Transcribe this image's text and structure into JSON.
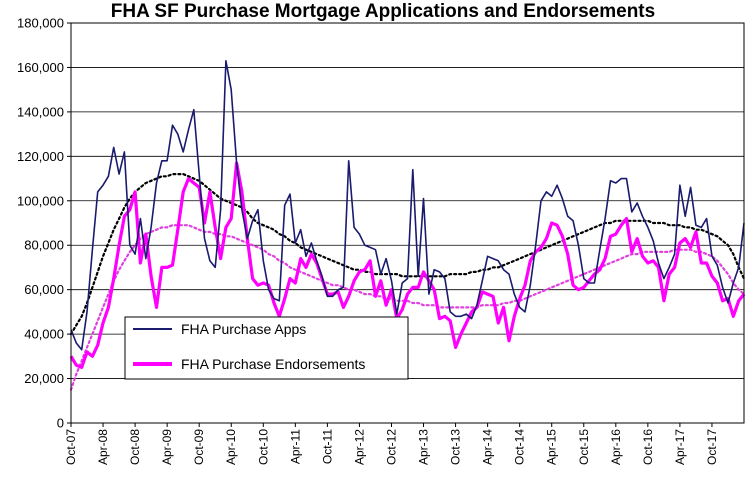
{
  "chart_data": {
    "type": "line",
    "title": "FHA SF Purchase Mortgage Applications and Endorsements",
    "xlabel": "",
    "ylabel": "",
    "ylim": [
      0,
      180000
    ],
    "yticks": [
      0,
      20000,
      40000,
      60000,
      80000,
      100000,
      120000,
      140000,
      160000,
      180000
    ],
    "ytick_labels": [
      "0",
      "20,000",
      "40,000",
      "60,000",
      "80,000",
      "100,000",
      "120,000",
      "140,000",
      "160,000",
      "180,000"
    ],
    "xtick_labels": [
      "Oct-07",
      "Apr-08",
      "Oct-08",
      "Apr-09",
      "Oct-09",
      "Apr-10",
      "Oct-10",
      "Apr-11",
      "Oct-11",
      "Apr-12",
      "Oct-12",
      "Apr-13",
      "Oct-13",
      "Apr-14",
      "Oct-14",
      "Apr-15",
      "Oct-15",
      "Apr-16",
      "Oct-16",
      "Apr-17",
      "Oct-17"
    ],
    "grid": true,
    "legend_position": "bottom-left",
    "series": [
      {
        "name": "FHA Purchase Apps",
        "color": "#1a1a6e",
        "start": "Oct-07",
        "frequency": "monthly",
        "values": [
          42000,
          36000,
          33000,
          50000,
          78000,
          104000,
          107000,
          111000,
          124000,
          112000,
          122000,
          80000,
          76000,
          92000,
          74000,
          88000,
          108000,
          118000,
          118000,
          134000,
          130000,
          122000,
          132000,
          141000,
          112000,
          83000,
          73000,
          70000,
          96000,
          163000,
          150000,
          117000,
          96000,
          83000,
          91000,
          96000,
          73000,
          60000,
          56000,
          55000,
          98000,
          103000,
          81000,
          87000,
          75000,
          81000,
          73000,
          66000,
          57000,
          57000,
          60000,
          61000,
          118000,
          88000,
          85000,
          80000,
          79000,
          78000,
          67000,
          74000,
          64000,
          49000,
          63000,
          65000,
          114000,
          66000,
          101000,
          58000,
          69000,
          68000,
          65000,
          50000,
          48000,
          48000,
          49000,
          47000,
          53000,
          64000,
          75000,
          74000,
          73000,
          69000,
          67000,
          58000,
          52000,
          50000,
          62000,
          80000,
          100000,
          104000,
          102000,
          107000,
          101000,
          93000,
          91000,
          80000,
          65000,
          63000,
          63000,
          78000,
          92000,
          109000,
          108000,
          110000,
          110000,
          95000,
          99000,
          93000,
          88000,
          82000,
          72000,
          65000,
          70000,
          76000,
          107000,
          93000,
          106000,
          89000,
          88000,
          92000,
          75000,
          71000,
          61000,
          54000,
          63000,
          70000,
          90000
        ]
      },
      {
        "name": "FHA Purchase Endorsements",
        "color": "#ff00ff",
        "start": "Oct-07",
        "frequency": "monthly",
        "values": [
          30000,
          26000,
          25000,
          32000,
          30000,
          35000,
          45000,
          52000,
          65000,
          80000,
          93000,
          96000,
          104000,
          72000,
          85000,
          66000,
          52000,
          70000,
          70000,
          71000,
          87000,
          104000,
          110000,
          108000,
          106000,
          90000,
          104000,
          88000,
          74000,
          88000,
          92000,
          117000,
          104000,
          83000,
          65000,
          62000,
          63000,
          62000,
          54000,
          48000,
          56000,
          65000,
          63000,
          74000,
          70000,
          76000,
          72000,
          65000,
          58000,
          58000,
          59000,
          52000,
          57000,
          64000,
          68000,
          69000,
          73000,
          57000,
          64000,
          53000,
          60000,
          47000,
          51000,
          58000,
          61000,
          61000,
          68000,
          64000,
          60000,
          47000,
          48000,
          46000,
          34000,
          40000,
          45000,
          50000,
          52000,
          59000,
          58000,
          57000,
          45000,
          52000,
          37000,
          48000,
          56000,
          62000,
          73000,
          77000,
          79000,
          83000,
          90000,
          89000,
          84000,
          76000,
          62000,
          60000,
          61000,
          64000,
          67000,
          69000,
          74000,
          84000,
          85000,
          89000,
          92000,
          77000,
          83000,
          75000,
          72000,
          73000,
          70000,
          55000,
          67000,
          70000,
          81000,
          83000,
          79000,
          86000,
          72000,
          72000,
          66000,
          63000,
          55000,
          56000,
          48000,
          55000,
          58000
        ]
      },
      {
        "name": "FHA Purchase Apps trend",
        "color": "#000000",
        "style": "dotted",
        "values": [
          40000,
          44000,
          48000,
          54000,
          61000,
          68000,
          75000,
          81000,
          87000,
          92000,
          97000,
          101000,
          104000,
          106000,
          108000,
          109000,
          110000,
          111000,
          111000,
          112000,
          112000,
          112000,
          111000,
          110000,
          109000,
          107000,
          105000,
          103000,
          101000,
          100000,
          99000,
          98000,
          97000,
          95000,
          92000,
          90000,
          89000,
          88000,
          87000,
          85000,
          84000,
          82000,
          81000,
          79000,
          78000,
          77000,
          76000,
          75000,
          74000,
          73000,
          72000,
          71000,
          70000,
          69000,
          69000,
          68000,
          68000,
          67000,
          67000,
          67000,
          67000,
          67000,
          66000,
          66000,
          66000,
          66000,
          66000,
          66000,
          66000,
          66000,
          66000,
          67000,
          67000,
          67000,
          67000,
          68000,
          68000,
          69000,
          69000,
          70000,
          70000,
          71000,
          72000,
          73000,
          74000,
          75000,
          76000,
          77000,
          78000,
          79000,
          80000,
          81000,
          82000,
          83000,
          84000,
          85000,
          86000,
          87000,
          88000,
          89000,
          90000,
          90000,
          91000,
          91000,
          91000,
          91000,
          91000,
          91000,
          91000,
          90000,
          90000,
          90000,
          89000,
          89000,
          89000,
          88000,
          88000,
          87000,
          87000,
          86000,
          85000,
          84000,
          82000,
          80000,
          76000,
          70000,
          65000
        ]
      },
      {
        "name": "FHA Purchase Endorsements trend",
        "color": "#e040e0",
        "style": "dotted",
        "values": [
          15000,
          22000,
          28000,
          34000,
          40000,
          46000,
          52000,
          58000,
          64000,
          69000,
          73000,
          77000,
          80000,
          83000,
          85000,
          86000,
          87000,
          88000,
          88000,
          89000,
          89000,
          89000,
          89000,
          88000,
          87000,
          86000,
          86000,
          85000,
          85000,
          84000,
          84000,
          83000,
          82000,
          81000,
          80000,
          79000,
          78000,
          76000,
          75000,
          73000,
          72000,
          70000,
          69000,
          68000,
          67000,
          66000,
          65000,
          64000,
          63000,
          62000,
          62000,
          61000,
          60000,
          60000,
          59000,
          58000,
          58000,
          57000,
          57000,
          56000,
          56000,
          55000,
          55000,
          55000,
          54000,
          54000,
          53000,
          53000,
          53000,
          52000,
          52000,
          52000,
          52000,
          52000,
          52000,
          52000,
          52000,
          53000,
          53000,
          53000,
          53000,
          54000,
          54000,
          55000,
          55000,
          56000,
          57000,
          58000,
          59000,
          60000,
          61000,
          62000,
          63000,
          64000,
          65000,
          66000,
          67000,
          68000,
          69000,
          70000,
          71000,
          72000,
          73000,
          74000,
          75000,
          76000,
          76000,
          77000,
          77000,
          77000,
          77000,
          77000,
          77000,
          78000,
          78000,
          78000,
          78000,
          77000,
          77000,
          76000,
          75000,
          73000,
          70000,
          67000,
          63000,
          60000,
          58000
        ]
      }
    ]
  }
}
